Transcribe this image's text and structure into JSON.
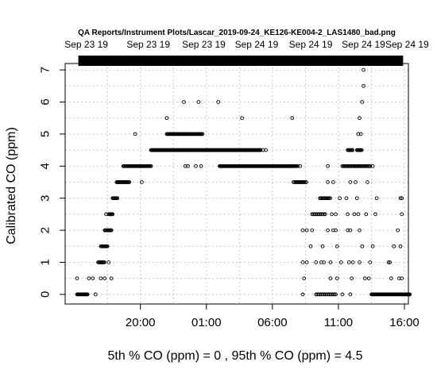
{
  "chart_data": {
    "type": "scatter",
    "title": "QA Reports/Instrument Plots/Lascar_2019-09-24_KE126-KE004-2_LAS1480_bad.png",
    "ylabel": "Calibrated CO (ppm)",
    "xlabel": "5th % CO (ppm) =  0 , 95th % CO (ppm)  =  4.5",
    "x_unit": "hours since 00:00 Sep 23 19 (time of day axis)",
    "xlim": [
      14.3,
      40.3
    ],
    "ylim": [
      -0.3,
      7.2
    ],
    "grid": true,
    "x_ticks": [
      {
        "value": 20,
        "label": "20:00"
      },
      {
        "value": 25,
        "label": "01:00"
      },
      {
        "value": 30,
        "label": "06:00"
      },
      {
        "value": 35,
        "label": "11:00"
      },
      {
        "value": 40,
        "label": "16:00"
      }
    ],
    "y_ticks": [
      0,
      1,
      2,
      3,
      4,
      5,
      6,
      7
    ],
    "top_ticks": [
      {
        "value": 15.9,
        "label": "Sep 23 19"
      },
      {
        "value": 20.6,
        "label": "Sep 23 19"
      },
      {
        "value": 24.8,
        "label": "Sep 23 19"
      },
      {
        "value": 28.8,
        "label": "Sep 24 19"
      },
      {
        "value": 32.9,
        "label": "Sep 24 19"
      },
      {
        "value": 36.9,
        "label": "Sep 24 19"
      },
      {
        "value": 40.2,
        "label": "Sep 24 19"
      }
    ],
    "top_bar": {
      "x_start": 15.3,
      "x_end": 39.9
    },
    "segments": [
      {
        "x_start": 15.2,
        "x_end": 16.0,
        "y": 0,
        "step": 0.05
      },
      {
        "x_start": 16.8,
        "x_end": 17.3,
        "y": 1,
        "step": 0.06
      },
      {
        "x_start": 17.0,
        "x_end": 17.5,
        "y": 1.5,
        "step": 0.06
      },
      {
        "x_start": 17.3,
        "x_end": 17.8,
        "y": 2,
        "step": 0.06
      },
      {
        "x_start": 17.6,
        "x_end": 17.9,
        "y": 2.5,
        "step": 0.06
      },
      {
        "x_start": 17.9,
        "x_end": 18.3,
        "y": 3,
        "step": 0.06
      },
      {
        "x_start": 18.2,
        "x_end": 19.2,
        "y": 3.5,
        "step": 0.06
      },
      {
        "x_start": 18.7,
        "x_end": 20.8,
        "y": 4,
        "step": 0.06
      },
      {
        "x_start": 20.8,
        "x_end": 29.1,
        "y": 4.5,
        "step": 0.05
      },
      {
        "x_start": 22.0,
        "x_end": 24.7,
        "y": 5,
        "step": 0.06
      },
      {
        "x_start": 26.0,
        "x_end": 31.9,
        "y": 4,
        "step": 0.05
      },
      {
        "x_start": 31.6,
        "x_end": 32.6,
        "y": 3.5,
        "step": 0.08
      },
      {
        "x_start": 33.1,
        "x_end": 34.0,
        "y": 2.5,
        "step": 0.1
      },
      {
        "x_start": 33.6,
        "x_end": 34.4,
        "y": 3,
        "step": 0.07
      },
      {
        "x_start": 33.3,
        "x_end": 34.8,
        "y": 0,
        "step": 0.1
      },
      {
        "x_start": 35.3,
        "x_end": 37.4,
        "y": 4,
        "step": 0.07
      },
      {
        "x_start": 35.7,
        "x_end": 36.1,
        "y": 4.5,
        "step": 0.06
      },
      {
        "x_start": 36.4,
        "x_end": 36.8,
        "y": 4.5,
        "step": 0.06
      },
      {
        "x_start": 37.5,
        "x_end": 40.4,
        "y": 0,
        "step": 0.05
      }
    ],
    "points": [
      {
        "x": 15.2,
        "y": 0.5
      },
      {
        "x": 16.1,
        "y": 0.5
      },
      {
        "x": 16.4,
        "y": 0.5
      },
      {
        "x": 17.0,
        "y": 0.5
      },
      {
        "x": 16.6,
        "y": 0
      },
      {
        "x": 17.3,
        "y": 0.5
      },
      {
        "x": 17.8,
        "y": 0.5
      },
      {
        "x": 17.6,
        "y": 1
      },
      {
        "x": 17.5,
        "y": 1.5
      },
      {
        "x": 17.8,
        "y": 2
      },
      {
        "x": 17.4,
        "y": 2.5
      },
      {
        "x": 18.3,
        "y": 3.5
      },
      {
        "x": 19.6,
        "y": 5
      },
      {
        "x": 20.1,
        "y": 4
      },
      {
        "x": 20.1,
        "y": 3.5
      },
      {
        "x": 22.0,
        "y": 5.5
      },
      {
        "x": 23.3,
        "y": 6
      },
      {
        "x": 24.4,
        "y": 6
      },
      {
        "x": 23.4,
        "y": 4
      },
      {
        "x": 23.6,
        "y": 4
      },
      {
        "x": 24.2,
        "y": 4
      },
      {
        "x": 24.6,
        "y": 4
      },
      {
        "x": 25.1,
        "y": 4.5
      },
      {
        "x": 25.9,
        "y": 6
      },
      {
        "x": 27.7,
        "y": 5.5
      },
      {
        "x": 26.1,
        "y": 4
      },
      {
        "x": 29.1,
        "y": 4.5
      },
      {
        "x": 29.3,
        "y": 4.5
      },
      {
        "x": 29.5,
        "y": 4.5
      },
      {
        "x": 31.5,
        "y": 5.5
      },
      {
        "x": 32.1,
        "y": 4
      },
      {
        "x": 31.9,
        "y": 3.5
      },
      {
        "x": 32.2,
        "y": 3.5
      },
      {
        "x": 32.3,
        "y": 2
      },
      {
        "x": 32.6,
        "y": 2
      },
      {
        "x": 32.3,
        "y": 1
      },
      {
        "x": 32.6,
        "y": 1
      },
      {
        "x": 32.4,
        "y": 0.5
      },
      {
        "x": 32.3,
        "y": 0
      },
      {
        "x": 32.9,
        "y": 1.5
      },
      {
        "x": 33.0,
        "y": 2
      },
      {
        "x": 33.3,
        "y": 1
      },
      {
        "x": 33.0,
        "y": 2.5
      },
      {
        "x": 33.9,
        "y": 1
      },
      {
        "x": 33.7,
        "y": 1
      },
      {
        "x": 33.8,
        "y": 1.5
      },
      {
        "x": 34.4,
        "y": 1
      },
      {
        "x": 34.2,
        "y": 2
      },
      {
        "x": 34.6,
        "y": 2
      },
      {
        "x": 34.8,
        "y": 2
      },
      {
        "x": 34.5,
        "y": 2.5
      },
      {
        "x": 34.8,
        "y": 2.5
      },
      {
        "x": 34.9,
        "y": 1.5
      },
      {
        "x": 34.4,
        "y": 0.5
      },
      {
        "x": 34.9,
        "y": 0.5
      },
      {
        "x": 34.2,
        "y": 3.5
      },
      {
        "x": 34.6,
        "y": 3.5
      },
      {
        "x": 35.1,
        "y": 3
      },
      {
        "x": 35.6,
        "y": 3
      },
      {
        "x": 34.2,
        "y": 4
      },
      {
        "x": 35.2,
        "y": 1
      },
      {
        "x": 35.7,
        "y": 2
      },
      {
        "x": 35.9,
        "y": 2
      },
      {
        "x": 35.8,
        "y": 1
      },
      {
        "x": 36.1,
        "y": 1
      },
      {
        "x": 35.3,
        "y": 0
      },
      {
        "x": 35.9,
        "y": 0
      },
      {
        "x": 36.0,
        "y": 0.5
      },
      {
        "x": 35.7,
        "y": 2.5
      },
      {
        "x": 36.2,
        "y": 2.5
      },
      {
        "x": 36.5,
        "y": 2.5
      },
      {
        "x": 35.9,
        "y": 3.5
      },
      {
        "x": 36.3,
        "y": 3.5
      },
      {
        "x": 36.4,
        "y": 3
      },
      {
        "x": 36.1,
        "y": 4
      },
      {
        "x": 36.6,
        "y": 1
      },
      {
        "x": 36.8,
        "y": 1.5
      },
      {
        "x": 36.6,
        "y": 2
      },
      {
        "x": 37.2,
        "y": 3.5
      },
      {
        "x": 37.1,
        "y": 2.5
      },
      {
        "x": 36.5,
        "y": 5
      },
      {
        "x": 36.7,
        "y": 5
      },
      {
        "x": 36.6,
        "y": 5.5
      },
      {
        "x": 36.8,
        "y": 6
      },
      {
        "x": 36.9,
        "y": 6.5
      },
      {
        "x": 36.9,
        "y": 7
      },
      {
        "x": 36.4,
        "y": 4
      },
      {
        "x": 37.6,
        "y": 4
      },
      {
        "x": 37.4,
        "y": 1
      },
      {
        "x": 37.6,
        "y": 1.5
      },
      {
        "x": 37.8,
        "y": 2.5
      },
      {
        "x": 37.0,
        "y": 0.5
      },
      {
        "x": 37.3,
        "y": 0.5
      },
      {
        "x": 38.8,
        "y": 1
      },
      {
        "x": 38.9,
        "y": 1
      },
      {
        "x": 39.0,
        "y": 0.5
      },
      {
        "x": 39.2,
        "y": 1.5
      },
      {
        "x": 39.5,
        "y": 2
      },
      {
        "x": 39.7,
        "y": 1.5
      },
      {
        "x": 39.6,
        "y": 0.5
      },
      {
        "x": 39.8,
        "y": 0.5
      },
      {
        "x": 39.8,
        "y": 2.5
      },
      {
        "x": 39.7,
        "y": 3
      },
      {
        "x": 39.8,
        "y": 3
      },
      {
        "x": 37.9,
        "y": 3
      }
    ]
  }
}
